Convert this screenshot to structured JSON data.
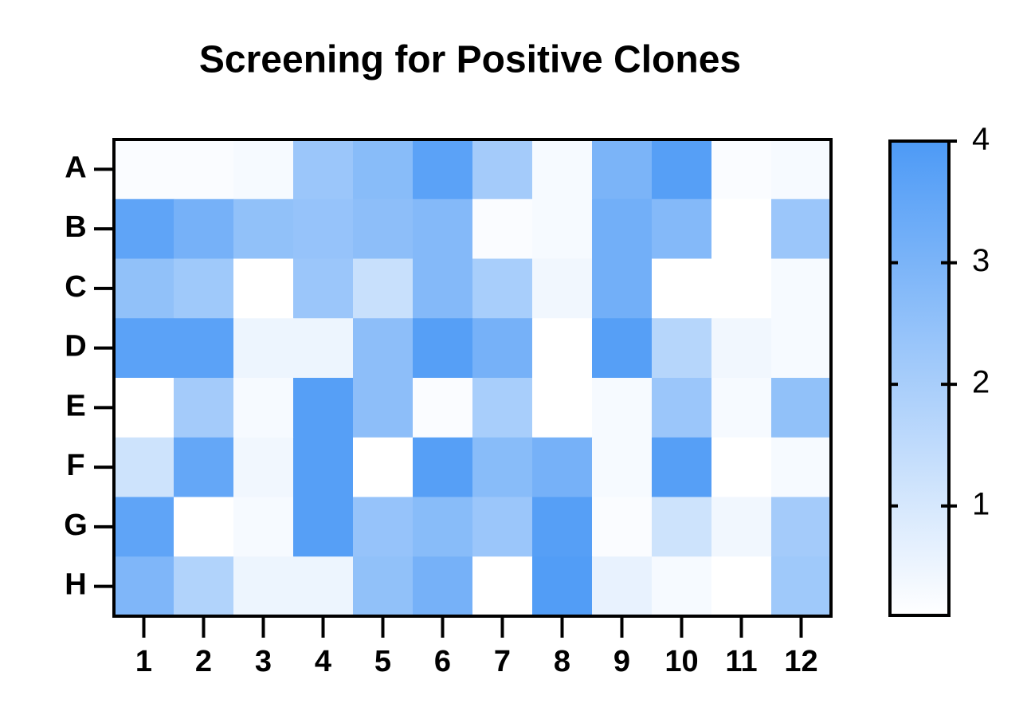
{
  "chart_data": {
    "type": "heatmap",
    "title": "Screening for Positive Clones",
    "x_categories": [
      "1",
      "2",
      "3",
      "4",
      "5",
      "6",
      "7",
      "8",
      "9",
      "10",
      "11",
      "12"
    ],
    "y_categories": [
      "A",
      "B",
      "C",
      "D",
      "E",
      "F",
      "G",
      "H"
    ],
    "values": [
      [
        0.2,
        0.2,
        0.3,
        2.3,
        2.7,
        3.7,
        2.1,
        0.3,
        3.0,
        3.8,
        0.2,
        0.3
      ],
      [
        3.6,
        3.1,
        2.5,
        2.4,
        2.6,
        2.8,
        0.2,
        0.3,
        3.2,
        2.8,
        0.1,
        2.3
      ],
      [
        2.5,
        2.2,
        0.1,
        2.3,
        1.3,
        2.8,
        2.0,
        0.4,
        3.2,
        0.1,
        0.1,
        0.3
      ],
      [
        3.7,
        3.7,
        0.5,
        0.5,
        2.6,
        3.8,
        3.1,
        0.1,
        3.8,
        1.7,
        0.4,
        0.3
      ],
      [
        0.1,
        2.1,
        0.3,
        3.8,
        2.6,
        0.2,
        2.0,
        0.1,
        0.3,
        2.3,
        0.3,
        2.5
      ],
      [
        1.2,
        3.5,
        0.4,
        3.8,
        0.1,
        3.8,
        2.7,
        3.1,
        0.3,
        3.8,
        0.1,
        0.3
      ],
      [
        3.6,
        0.1,
        0.3,
        3.8,
        2.4,
        2.7,
        2.3,
        3.8,
        0.2,
        1.2,
        0.4,
        2.1
      ],
      [
        2.9,
        1.8,
        0.5,
        0.5,
        2.5,
        3.1,
        0.1,
        3.9,
        0.6,
        0.3,
        0.1,
        2.2
      ]
    ],
    "zlim": [
      0.1,
      4
    ],
    "zticks": [
      1,
      2,
      3,
      4
    ],
    "colors": [
      "#ffffff",
      "#4d9af6"
    ]
  }
}
